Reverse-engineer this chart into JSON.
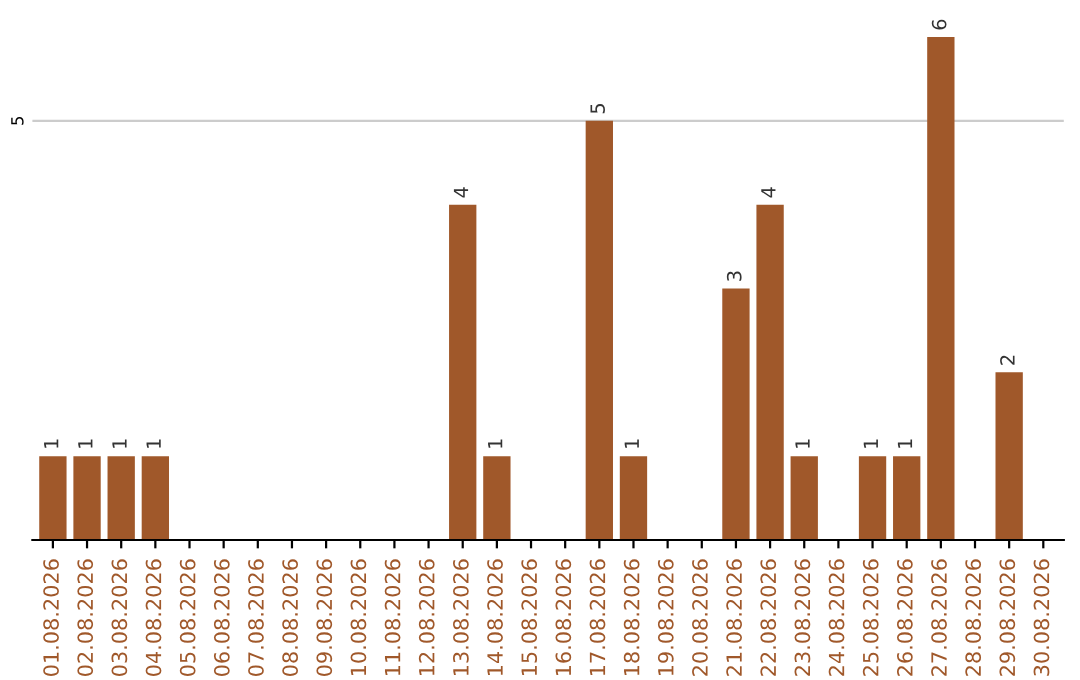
{
  "chart_data": {
    "type": "bar",
    "categories": [
      "01.08.2026",
      "02.08.2026",
      "03.08.2026",
      "04.08.2026",
      "05.08.2026",
      "06.08.2026",
      "07.08.2026",
      "08.08.2026",
      "09.08.2026",
      "10.08.2026",
      "11.08.2026",
      "12.08.2026",
      "13.08.2026",
      "14.08.2026",
      "15.08.2026",
      "16.08.2026",
      "17.08.2026",
      "18.08.2026",
      "19.08.2026",
      "20.08.2026",
      "21.08.2026",
      "22.08.2026",
      "23.08.2026",
      "24.08.2026",
      "25.08.2026",
      "26.08.2026",
      "27.08.2026",
      "28.08.2026",
      "29.08.2026",
      "30.08.2026"
    ],
    "values": [
      1,
      1,
      1,
      1,
      null,
      null,
      null,
      null,
      null,
      null,
      null,
      null,
      4,
      1,
      null,
      null,
      5,
      1,
      null,
      null,
      3,
      4,
      1,
      null,
      1,
      1,
      6,
      null,
      2,
      null
    ],
    "color": "#a0582a",
    "ref_lines": [
      {
        "axis": "y",
        "value": 5,
        "label": "5",
        "color": "#cccccc"
      }
    ],
    "data_labels": true
  }
}
